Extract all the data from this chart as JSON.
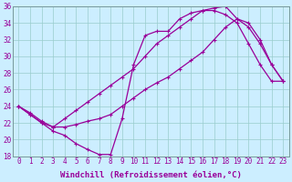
{
  "xlabel": "Windchill (Refroidissement éolien,°C)",
  "bg_color": "#cceeff",
  "line_color": "#990099",
  "grid_color": "#99cccc",
  "xlim": [
    -0.5,
    23.5
  ],
  "ylim": [
    18,
    36
  ],
  "xticks": [
    0,
    1,
    2,
    3,
    4,
    5,
    6,
    7,
    8,
    9,
    10,
    11,
    12,
    13,
    14,
    15,
    16,
    17,
    18,
    19,
    20,
    21,
    22,
    23
  ],
  "yticks": [
    18,
    20,
    22,
    24,
    26,
    28,
    30,
    32,
    34,
    36
  ],
  "line1_x": [
    0,
    1,
    2,
    3,
    4,
    5,
    6,
    7,
    8,
    9,
    10,
    11,
    12,
    13,
    14,
    15,
    16,
    17,
    18,
    19,
    20,
    21,
    22,
    23
  ],
  "line1_y": [
    24.0,
    23.0,
    22.0,
    21.0,
    20.5,
    19.5,
    18.8,
    18.2,
    18.2,
    22.5,
    29.0,
    32.5,
    33.0,
    33.0,
    34.5,
    35.2,
    35.5,
    35.5,
    35.0,
    34.0,
    31.5,
    29.0,
    27.0,
    27.0
  ],
  "line2_x": [
    0,
    1,
    2,
    3,
    4,
    5,
    6,
    7,
    8,
    9,
    10,
    11,
    12,
    13,
    14,
    15,
    16,
    17,
    18,
    19,
    20,
    21,
    22,
    23
  ],
  "line2_y": [
    24.0,
    23.2,
    22.2,
    21.5,
    22.5,
    23.5,
    24.5,
    25.5,
    26.5,
    27.5,
    28.5,
    30.0,
    31.5,
    32.5,
    33.5,
    34.5,
    35.5,
    35.8,
    36.0,
    34.5,
    34.0,
    32.0,
    29.0,
    27.0
  ],
  "line3_x": [
    0,
    1,
    2,
    3,
    4,
    5,
    6,
    7,
    8,
    9,
    10,
    11,
    12,
    13,
    14,
    15,
    16,
    17,
    18,
    19,
    20,
    21,
    22,
    23
  ],
  "line3_y": [
    24.0,
    23.0,
    22.0,
    21.5,
    21.5,
    21.8,
    22.2,
    22.5,
    23.0,
    24.0,
    25.0,
    26.0,
    26.8,
    27.5,
    28.5,
    29.5,
    30.5,
    32.0,
    33.5,
    34.5,
    33.5,
    31.5,
    29.0,
    27.0
  ],
  "marker": "+",
  "markersize": 3,
  "linewidth": 0.9,
  "xlabel_fontsize": 6.5,
  "tick_fontsize": 5.5
}
